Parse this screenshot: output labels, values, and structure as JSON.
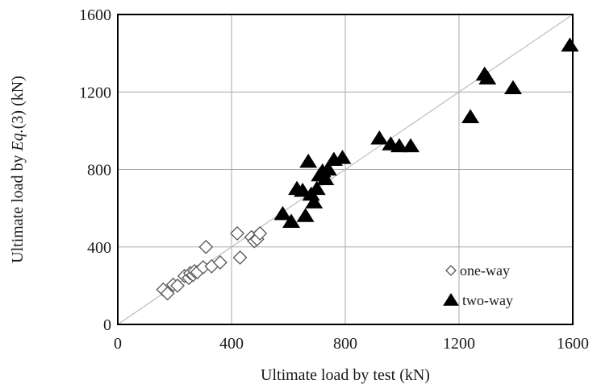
{
  "chart_data": {
    "type": "scatter",
    "title": "",
    "xlabel": "Ultimate load by test (kN)",
    "ylabel_parts": [
      "Ultimate load by ",
      "Eq.",
      "(3) (kN)"
    ],
    "xlim": [
      0,
      1600
    ],
    "ylim": [
      0,
      1600
    ],
    "x_ticks": [
      "0",
      "400",
      "800",
      "1200",
      "1600"
    ],
    "y_ticks": [
      "0",
      "400",
      "800",
      "1200",
      "1600"
    ],
    "grid": true,
    "reference_line": "y = x",
    "legend_position": "bottom-right",
    "series": [
      {
        "name": "one-way",
        "marker": "open-diamond",
        "color": "#555555",
        "points": [
          [
            160,
            180
          ],
          [
            175,
            160
          ],
          [
            195,
            205
          ],
          [
            210,
            200
          ],
          [
            235,
            250
          ],
          [
            250,
            240
          ],
          [
            255,
            265
          ],
          [
            265,
            255
          ],
          [
            270,
            275
          ],
          [
            280,
            270
          ],
          [
            300,
            295
          ],
          [
            310,
            400
          ],
          [
            330,
            300
          ],
          [
            360,
            320
          ],
          [
            420,
            470
          ],
          [
            430,
            345
          ],
          [
            470,
            450
          ],
          [
            480,
            430
          ],
          [
            490,
            440
          ],
          [
            500,
            470
          ]
        ]
      },
      {
        "name": "two-way",
        "marker": "filled-triangle",
        "color": "#000000",
        "points": [
          [
            580,
            570
          ],
          [
            610,
            530
          ],
          [
            630,
            700
          ],
          [
            650,
            690
          ],
          [
            660,
            560
          ],
          [
            670,
            840
          ],
          [
            680,
            670
          ],
          [
            690,
            630
          ],
          [
            700,
            700
          ],
          [
            710,
            770
          ],
          [
            720,
            790
          ],
          [
            730,
            750
          ],
          [
            740,
            800
          ],
          [
            760,
            850
          ],
          [
            790,
            860
          ],
          [
            920,
            960
          ],
          [
            960,
            930
          ],
          [
            990,
            920
          ],
          [
            1030,
            920
          ],
          [
            1240,
            1070
          ],
          [
            1290,
            1290
          ],
          [
            1300,
            1270
          ],
          [
            1390,
            1220
          ],
          [
            1590,
            1440
          ]
        ]
      }
    ]
  }
}
